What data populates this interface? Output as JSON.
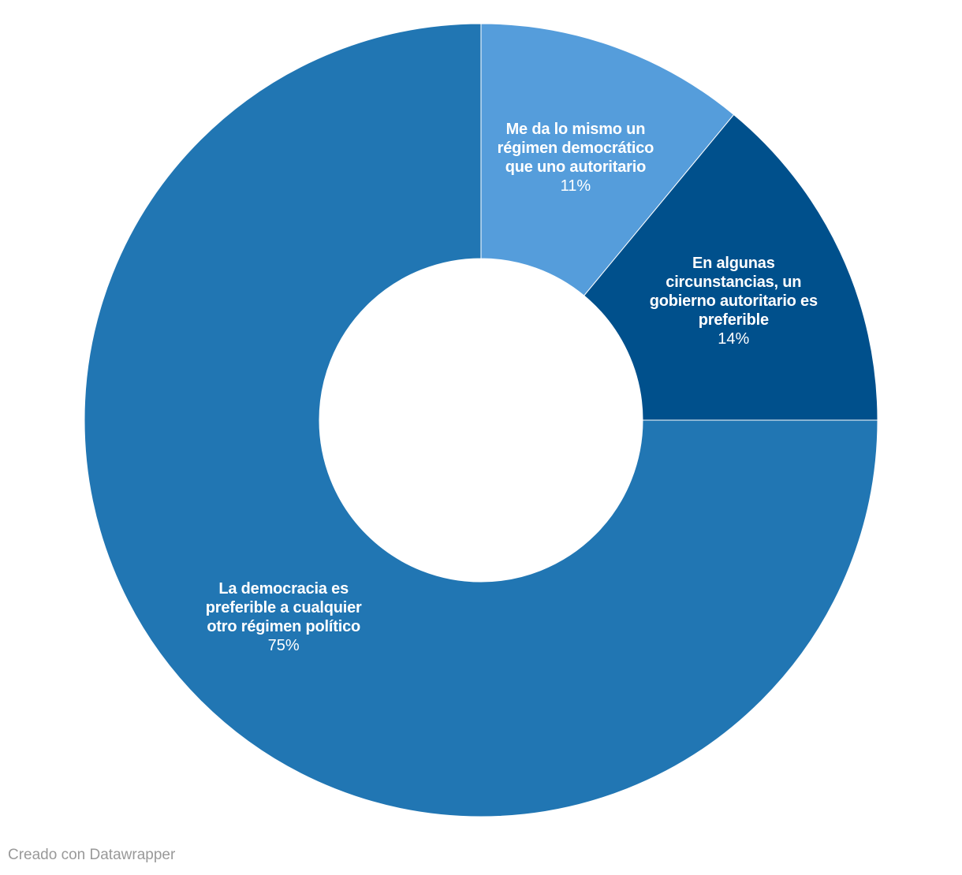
{
  "chart_data": {
    "type": "donut",
    "categories": [
      "Me da lo mismo un régimen democrático que uno autoritario",
      "En algunas circunstancias, un gobierno autoritario es preferible",
      "La democracia es preferible a cualquier otro régimen político"
    ],
    "values": [
      11,
      14,
      75
    ],
    "value_labels": [
      "11%",
      "14%",
      "75%"
    ],
    "colors": [
      "#559ddb",
      "#00508c",
      "#2176b3"
    ],
    "credit": "Creado con Datawrapper"
  }
}
